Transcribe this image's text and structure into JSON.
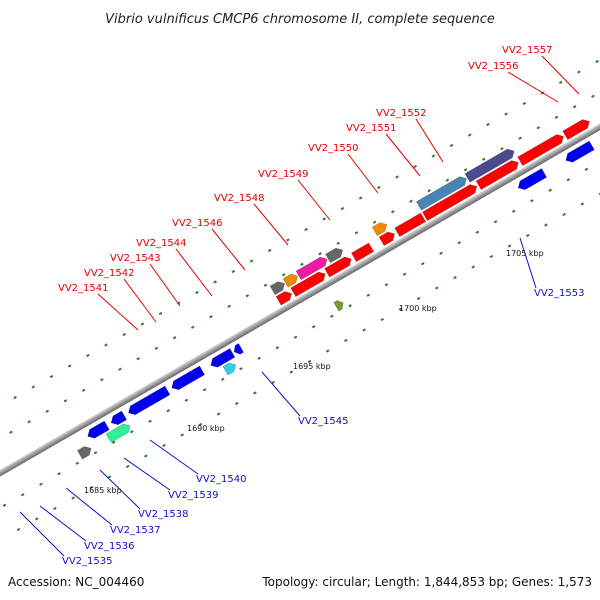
{
  "title": "Vibrio vulnificus CMCP6 chromosome II, complete sequence",
  "footer": {
    "accession": "Accession: NC_004460",
    "topology": "Topology: circular; Length: 1,844,853 bp; Genes: 1,573"
  },
  "kbp_labels": [
    "1685 kbp",
    "1690 kbp",
    "1695 kbp",
    "1700 kbp",
    "1705 kbp"
  ],
  "top_genes": [
    "VV2_1541",
    "VV2_1542",
    "VV2_1543",
    "VV2_1544",
    "VV2_1546",
    "VV2_1548",
    "VV2_1549",
    "VV2_1550",
    "VV2_1551",
    "VV2_1552",
    "VV2_1556",
    "VV2_1557"
  ],
  "bottom_genes": [
    "VV2_1535",
    "VV2_1536",
    "VV2_1537",
    "VV2_1538",
    "VV2_1539",
    "VV2_1540",
    "VV2_1545",
    "VV2_1553"
  ],
  "colors": {
    "red": "#ff0000",
    "dark_red": "#aa0000",
    "blue": "#0000ee",
    "dark_blue": "#00008a",
    "gray": "#666666",
    "slate": "#4a4a8c",
    "orange": "#ee8a00",
    "magenta": "#ee1aa0",
    "steel_blue": "#4a84b4",
    "cyan": "#33ccee",
    "mint": "#33ee99",
    "olive": "#7a9a2a",
    "tick": "#2e7d2e",
    "backbone": "#999999"
  }
}
